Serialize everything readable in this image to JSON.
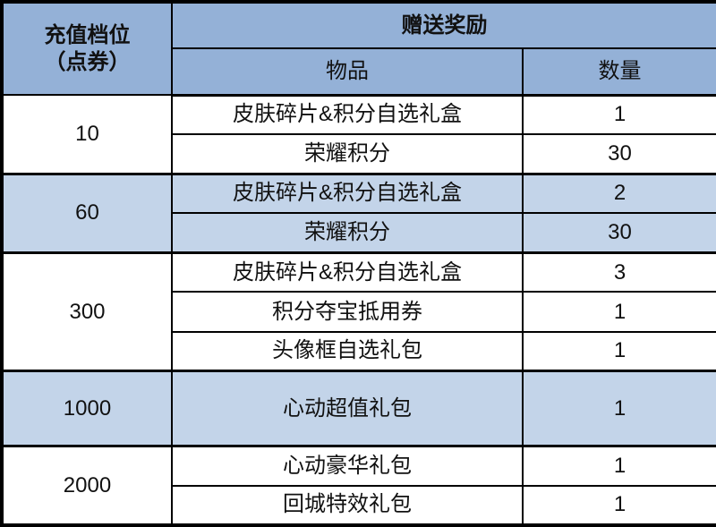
{
  "table": {
    "header": {
      "tier_line1": "充值档位",
      "tier_line2": "（点券）",
      "reward_label": "赠送奖励",
      "item_label": "物品",
      "qty_label": "数量"
    },
    "groups": [
      {
        "tier": "10",
        "highlight": false,
        "rewards": [
          {
            "item": "皮肤碎片&积分自选礼盒",
            "qty": "1"
          },
          {
            "item": "荣耀积分",
            "qty": "30"
          }
        ]
      },
      {
        "tier": "60",
        "highlight": true,
        "rewards": [
          {
            "item": "皮肤碎片&积分自选礼盒",
            "qty": "2"
          },
          {
            "item": "荣耀积分",
            "qty": "30"
          }
        ]
      },
      {
        "tier": "300",
        "highlight": false,
        "rewards": [
          {
            "item": "皮肤碎片&积分自选礼盒",
            "qty": "3"
          },
          {
            "item": "积分夺宝抵用券",
            "qty": "1"
          },
          {
            "item": "头像框自选礼包",
            "qty": "1"
          }
        ]
      },
      {
        "tier": "1000",
        "highlight": true,
        "rewards": [
          {
            "item": "心动超值礼包",
            "qty": "1"
          }
        ]
      },
      {
        "tier": "2000",
        "highlight": false,
        "rewards": [
          {
            "item": "心动豪华礼包",
            "qty": "1"
          },
          {
            "item": "回城特效礼包",
            "qty": "1"
          }
        ]
      }
    ],
    "colors": {
      "header_bg": "#94B1D7",
      "highlight_bg": "#C3D4E9",
      "row_bg": "#FFFFFF",
      "border": "#000000",
      "text": "#111111"
    }
  },
  "chart_data": {
    "type": "table",
    "columns": [
      "充值档位（点券）",
      "物品",
      "数量"
    ],
    "rows": [
      [
        "10",
        "皮肤碎片&积分自选礼盒",
        1
      ],
      [
        "10",
        "荣耀积分",
        30
      ],
      [
        "60",
        "皮肤碎片&积分自选礼盒",
        2
      ],
      [
        "60",
        "荣耀积分",
        30
      ],
      [
        "300",
        "皮肤碎片&积分自选礼盒",
        3
      ],
      [
        "300",
        "积分夺宝抵用券",
        1
      ],
      [
        "300",
        "头像框自选礼包",
        1
      ],
      [
        "1000",
        "心动超值礼包",
        1
      ],
      [
        "2000",
        "心动豪华礼包",
        1
      ],
      [
        "2000",
        "回城特效礼包",
        1
      ]
    ]
  }
}
